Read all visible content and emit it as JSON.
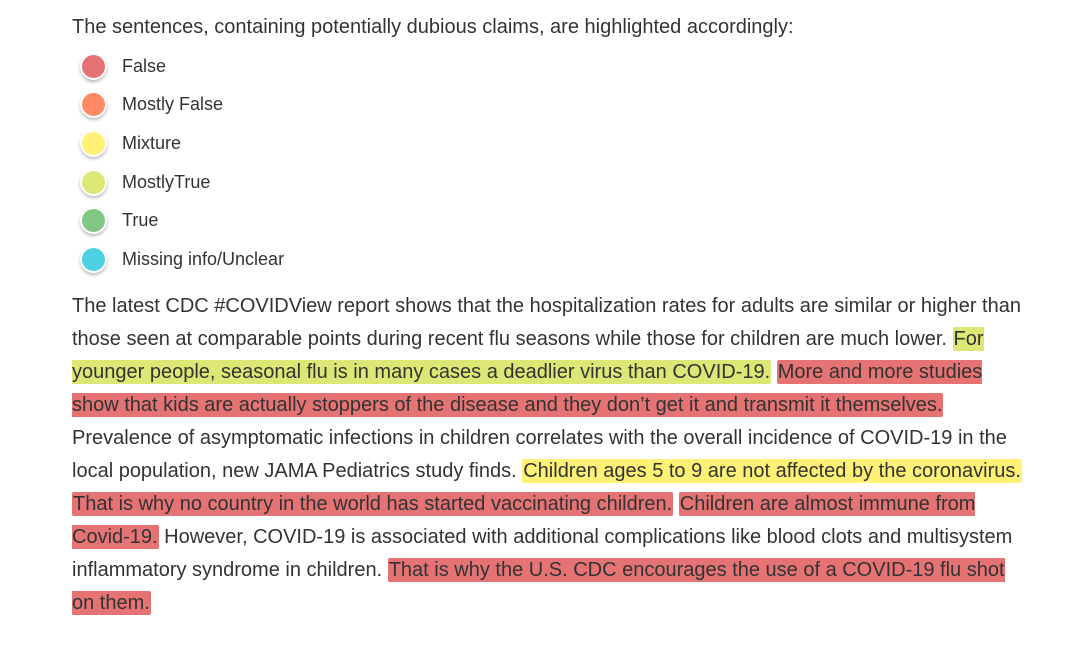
{
  "intro": "The sentences, containing potentially dubious claims, are highlighted accordingly:",
  "legend": [
    {
      "label": "False",
      "color": "#e57373",
      "icon": "false-dot-icon"
    },
    {
      "label": "Mostly False",
      "color": "#ff8a65",
      "icon": "mostly-false-dot-icon"
    },
    {
      "label": "Mixture",
      "color": "#fff176",
      "icon": "mixture-dot-icon"
    },
    {
      "label": "MostlyTrue",
      "color": "#dce775",
      "icon": "mostly-true-dot-icon"
    },
    {
      "label": "True",
      "color": "#81c784",
      "icon": "true-dot-icon"
    },
    {
      "label": "Missing info/Unclear",
      "color": "#4dd0e1",
      "icon": "missing-info-dot-icon"
    }
  ],
  "article": {
    "segments": [
      {
        "text": "The latest CDC #COVIDView report shows that the hospitalization rates for adults are similar or higher than those seen at comparable points during recent flu seasons while those for children are much lower. ",
        "rating": "none"
      },
      {
        "text": "For younger people, seasonal flu is in many cases a deadlier virus than COVID-19.",
        "rating": "MostlyTrue"
      },
      {
        "text": " ",
        "rating": "none"
      },
      {
        "text": "More and more studies show that kids are actually stoppers of the disease and they don’t get it and transmit it themselves.",
        "rating": "False"
      },
      {
        "text": " Prevalence of asymptomatic infections in children correlates with the overall incidence of COVID-19 in the local population, new JAMA Pediatrics study finds. ",
        "rating": "none"
      },
      {
        "text": "Children ages 5 to 9 are not affected by the coronavirus.",
        "rating": "Mixture"
      },
      {
        "text": " ",
        "rating": "none"
      },
      {
        "text": "That is why no country in the world has started vaccinating children.",
        "rating": "False"
      },
      {
        "text": " ",
        "rating": "none"
      },
      {
        "text": "Children are almost immune from Covid-19.",
        "rating": "False"
      },
      {
        "text": " However, COVID-19 is associated with additional complications like blood clots and multisystem inflammatory syndrome in children. ",
        "rating": "none"
      },
      {
        "text": "That is why the U.S. CDC encourages the use of a COVID-19 flu shot on them.",
        "rating": "False"
      }
    ]
  }
}
